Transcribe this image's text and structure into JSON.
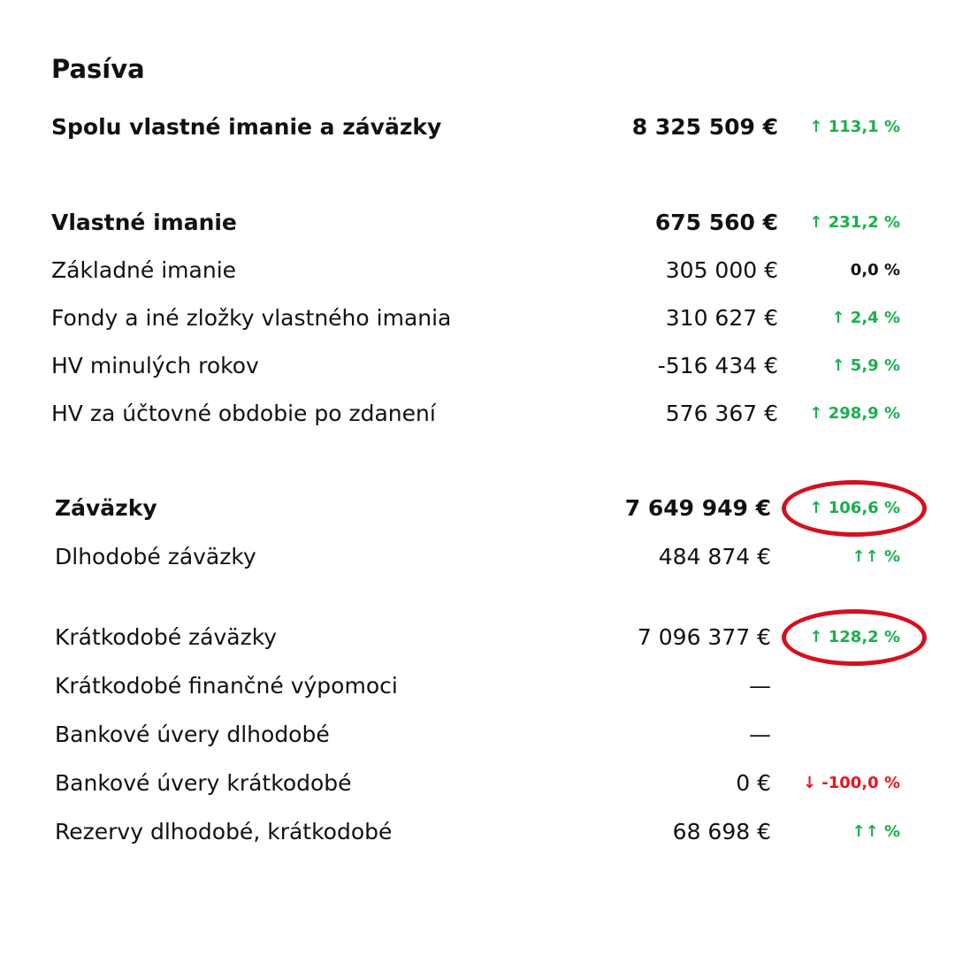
{
  "title": "Pasíva",
  "totals": {
    "label": "Spolu vlastné imanie a záväzky",
    "value": "8 325 509 €",
    "change": "↑ 113,1 %",
    "direction": "up"
  },
  "equity": {
    "header": {
      "label": "Vlastné imanie",
      "value": "675 560 €",
      "change": "↑ 231,2 %",
      "direction": "up"
    },
    "rows": [
      {
        "label": "Základné imanie",
        "value": "305 000 €",
        "change": "0,0 %",
        "direction": "neutral"
      },
      {
        "label": "Fondy a iné zložky vlastného imania",
        "value": "310 627 €",
        "change": "↑ 2,4 %",
        "direction": "up"
      },
      {
        "label": "HV minulých rokov",
        "value": "-516 434 €",
        "change": "↑ 5,9 %",
        "direction": "up"
      },
      {
        "label": "HV za účtovné obdobie po zdanení",
        "value": "576 367 €",
        "change": "↑ 298,9 %",
        "direction": "up"
      }
    ]
  },
  "liabilities": {
    "header": {
      "label": "Záväzky",
      "value": "7 649 949 €",
      "change": "↑ 106,6 %",
      "direction": "up",
      "highlighted": true
    },
    "long_term": {
      "label": "Dlhodobé záväzky",
      "value": "484 874 €",
      "change": "↑↑ %",
      "direction": "up"
    },
    "rows": [
      {
        "label": "Krátkodobé záväzky",
        "value": "7 096 377 €",
        "change": "↑ 128,2 %",
        "direction": "up",
        "highlighted": true
      },
      {
        "label": "Krátkodobé finančné výpomoci",
        "value": "—",
        "change": "",
        "direction": "none"
      },
      {
        "label": "Bankové úvery dlhodobé",
        "value": "—",
        "change": "",
        "direction": "none"
      },
      {
        "label": "Bankové úvery krátkodobé",
        "value": "0 €",
        "change": "↓ -100,0 %",
        "direction": "down"
      },
      {
        "label": "Rezervy dlhodobé, krátkodobé",
        "value": "68 698 €",
        "change": "↑↑ %",
        "direction": "up"
      }
    ]
  },
  "colors": {
    "up": "#18b14a",
    "down": "#e8141c",
    "neutral": "#111111",
    "highlight_ring": "#d5101e"
  }
}
